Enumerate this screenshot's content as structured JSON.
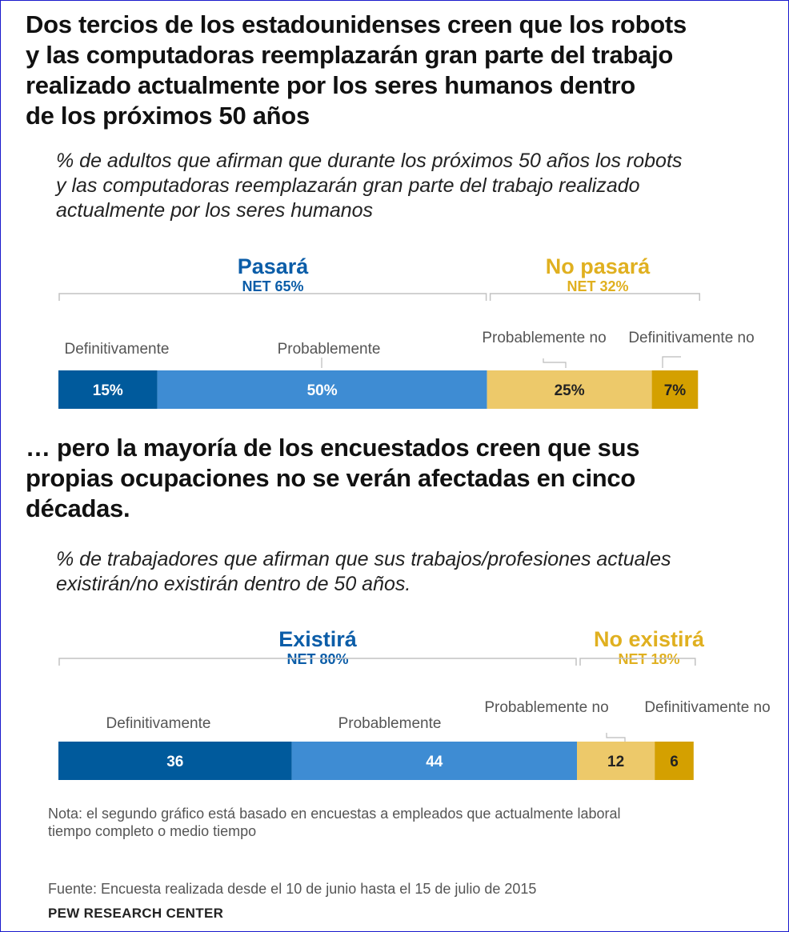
{
  "title": "Dos tercios de los estadounidenses creen que los robots y las computadoras reemplazarán gran parte del trabajo realizado actualmente por los seres humanos dentro de los próximos 50 años",
  "title_lines": [
    "Dos tercios de los estadounidenses creen que los robots",
    "y las computadoras reemplazarán gran parte del trabajo",
    "realizado actualmente por los seres humanos dentro",
    "de los próximos 50 años"
  ],
  "subtitle1_lines": [
    "% de adultos que afirman que durante los próximos 50 años los robots",
    "y las computadoras reemplazarán gran parte del trabajo realizado",
    "actualmente por los seres humanos"
  ],
  "title2_lines": [
    "… pero la mayoría de los encuestados creen que sus",
    "propias ocupaciones no se verán afectadas en cinco",
    "décadas."
  ],
  "subtitle2_lines": [
    "% de trabajadores que afirman que sus trabajos/profesiones actuales",
    "existirán/no existirán dentro de 50 años."
  ],
  "note_lines": [
    "Nota: el segundo gráfico está basado en encuestas a empleados que actualmente laboral",
    "tiempo completo o medio tiempo"
  ],
  "source": "Fuente: Encuesta realizada desde el 10 de junio hasta el 15 de julio de 2015",
  "brand": "PEW RESEARCH CENTER",
  "colors": {
    "dark_blue": "#005a9c",
    "light_blue": "#3e8cd3",
    "light_gold": "#edc96a",
    "dark_gold": "#d4a000",
    "blue_text": "#0b5da8",
    "gold_text": "#e0b020"
  },
  "chart_data": [
    {
      "type": "bar",
      "stacked": true,
      "orientation": "horizontal",
      "categories": [
        "Definitivamente",
        "Probablemente",
        "Probablemente no",
        "Definitivamente no"
      ],
      "values": [
        15,
        50,
        25,
        7
      ],
      "value_labels": [
        "15%",
        "50%",
        "25%",
        "7%"
      ],
      "groups": [
        {
          "name": "Pasará",
          "net": "NET 65%"
        },
        {
          "name": "No pasará",
          "net": "NET 32%"
        }
      ]
    },
    {
      "type": "bar",
      "stacked": true,
      "orientation": "horizontal",
      "categories": [
        "Definitivamente",
        "Probablemente",
        "Probablemente no",
        "Definitivamente no"
      ],
      "values": [
        36,
        44,
        12,
        6
      ],
      "value_labels": [
        "36",
        "44",
        "12",
        "6"
      ],
      "groups": [
        {
          "name": "Existirá",
          "net": "NET 80%"
        },
        {
          "name": "No existirá",
          "net": "NET 18%"
        }
      ]
    }
  ]
}
